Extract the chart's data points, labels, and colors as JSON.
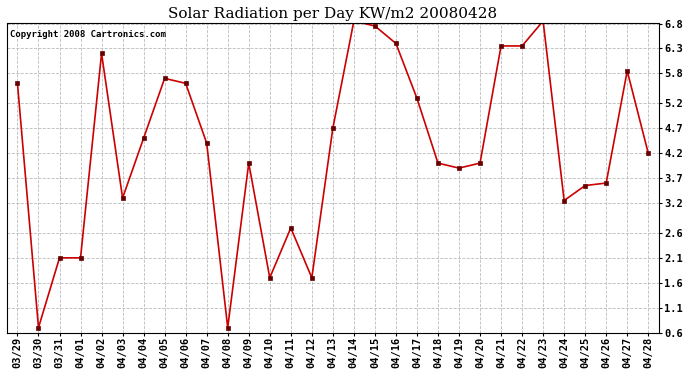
{
  "title": "Solar Radiation per Day KW/m2 20080428",
  "copyright": "Copyright 2008 Cartronics.com",
  "dates": [
    "03/29",
    "03/30",
    "03/31",
    "04/01",
    "04/02",
    "04/03",
    "04/04",
    "04/05",
    "04/06",
    "04/07",
    "04/08",
    "04/09",
    "04/10",
    "04/11",
    "04/12",
    "04/13",
    "04/14",
    "04/15",
    "04/16",
    "04/17",
    "04/18",
    "04/19",
    "04/20",
    "04/21",
    "04/22",
    "04/23",
    "04/24",
    "04/25",
    "04/26",
    "04/27",
    "04/28"
  ],
  "values": [
    5.6,
    0.7,
    2.1,
    2.1,
    6.2,
    3.3,
    4.5,
    5.7,
    5.6,
    4.4,
    0.7,
    4.0,
    1.7,
    2.7,
    1.7,
    4.7,
    6.85,
    6.75,
    6.4,
    5.3,
    4.0,
    3.9,
    4.0,
    6.35,
    6.35,
    6.85,
    3.25,
    3.55,
    3.6,
    5.85,
    4.2
  ],
  "line_color": "#cc0000",
  "marker_color": "#660000",
  "bg_color": "#ffffff",
  "grid_color": "#bbbbbb",
  "ylim": [
    0.6,
    6.8
  ],
  "yticks": [
    0.6,
    1.1,
    1.6,
    2.1,
    2.6,
    3.2,
    3.7,
    4.2,
    4.7,
    5.2,
    5.8,
    6.3,
    6.8
  ],
  "ytick_labels": [
    "0.6",
    "1.1",
    "1.6",
    "2.1",
    "2.6",
    "3.2",
    "3.7",
    "4.2",
    "4.7",
    "5.2",
    "5.8",
    "6.3",
    "6.8"
  ],
  "title_fontsize": 11,
  "copyright_fontsize": 6.5,
  "tick_fontsize": 7.5
}
